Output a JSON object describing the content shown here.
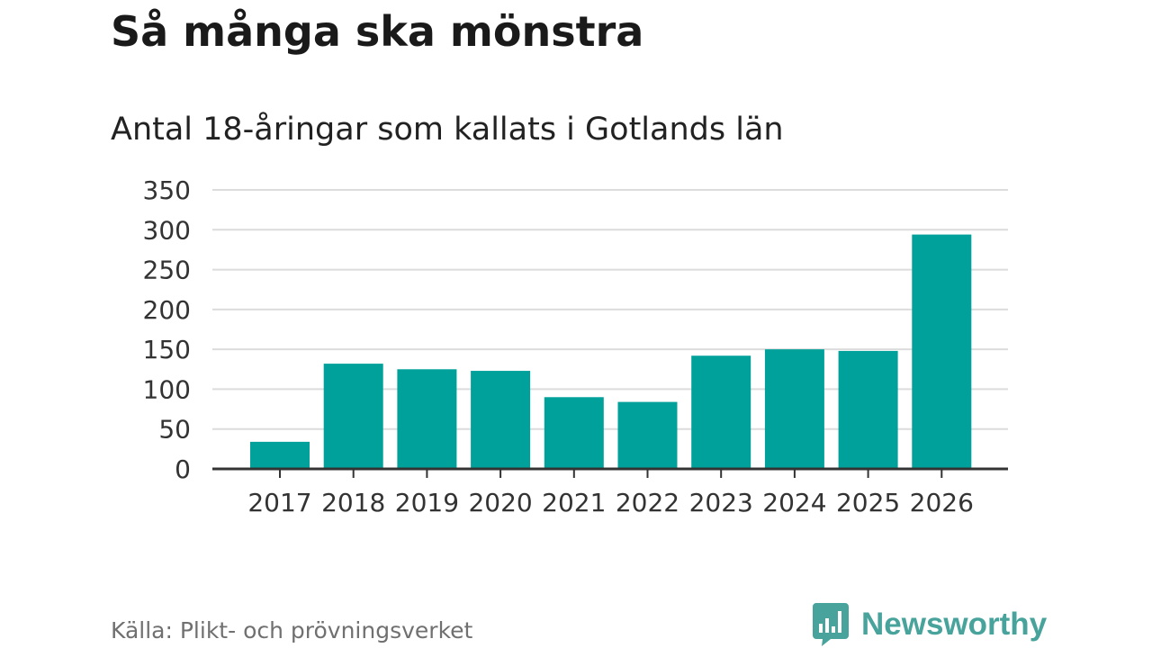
{
  "header": {
    "title": "Så många ska mönstra",
    "subtitle": "Antal 18-åringar som kallats i Gotlands län"
  },
  "footer": {
    "source": "Källa: Plikt- och prövningsverket",
    "brand": "Newsworthy",
    "brand_icon": "bar-chart-speech-bubble-icon",
    "brand_color": "#47a39b"
  },
  "chart_data": {
    "type": "bar",
    "categories": [
      "2017",
      "2018",
      "2019",
      "2020",
      "2021",
      "2022",
      "2023",
      "2024",
      "2025",
      "2026"
    ],
    "values": [
      34,
      132,
      125,
      123,
      90,
      84,
      142,
      150,
      148,
      294
    ],
    "title": "Så många ska mönstra",
    "subtitle": "Antal 18-åringar som kallats i Gotlands län",
    "xlabel": "",
    "ylabel": "",
    "ylim": [
      0,
      350
    ],
    "yticks": [
      0,
      50,
      100,
      150,
      200,
      250,
      300,
      350
    ],
    "grid": true,
    "legend": "none",
    "bar_color": "#00a19a",
    "grid_color": "#dcdcdc",
    "axis_color": "#333333"
  }
}
